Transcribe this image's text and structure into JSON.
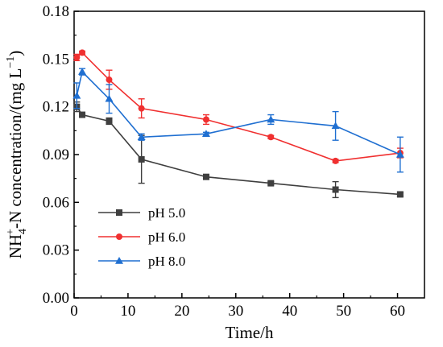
{
  "chart_data": {
    "type": "line",
    "xlabel": "Time/h",
    "ylabel": {
      "prefix": "NH",
      "sub": "4",
      "sup": "+",
      "suffix": "-N concentration/(mg L",
      "unit_sup": "−1",
      "close": ")"
    },
    "xlim": [
      0,
      65
    ],
    "ylim": [
      0,
      0.18
    ],
    "xticks": [
      0,
      10,
      20,
      30,
      40,
      50,
      60
    ],
    "yticks": [
      "0.00",
      "0.03",
      "0.06",
      "0.09",
      "0.12",
      "0.15",
      "0.18"
    ],
    "legend_position": "lower-left",
    "grid": false,
    "series": [
      {
        "name": "pH 5.0",
        "color": "#3f3f3f",
        "marker": "square",
        "x": [
          0.5,
          1.5,
          6.5,
          12.5,
          24.5,
          36.5,
          48.5,
          60.5
        ],
        "y": [
          0.12,
          0.115,
          0.111,
          0.087,
          0.076,
          0.072,
          0.068,
          0.065
        ],
        "err": [
          0.003,
          0.001,
          0.002,
          0.015,
          0.001,
          0.001,
          0.005,
          0.001
        ]
      },
      {
        "name": "pH 6.0",
        "color": "#f03030",
        "marker": "circle",
        "x": [
          0.5,
          1.5,
          6.5,
          12.5,
          24.5,
          36.5,
          48.5,
          60.5
        ],
        "y": [
          0.151,
          0.154,
          0.137,
          0.119,
          0.112,
          0.101,
          0.086,
          0.091
        ],
        "err": [
          0.002,
          0.001,
          0.006,
          0.006,
          0.003,
          0.001,
          0.001,
          0.003
        ]
      },
      {
        "name": "pH 8.0",
        "color": "#1f6fd1",
        "marker": "triangle",
        "x": [
          0.5,
          1.5,
          6.5,
          12.5,
          24.5,
          36.5,
          48.5,
          60.5
        ],
        "y": [
          0.127,
          0.142,
          0.125,
          0.101,
          0.103,
          0.112,
          0.108,
          0.09
        ],
        "err": [
          0.008,
          0.002,
          0.009,
          0.002,
          0.001,
          0.003,
          0.009,
          0.011
        ]
      }
    ]
  }
}
